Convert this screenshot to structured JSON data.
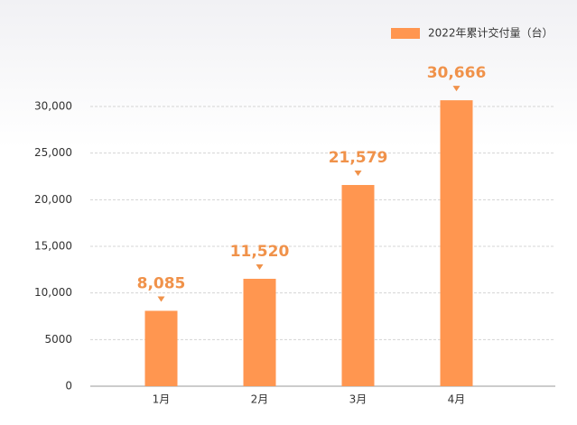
{
  "chart_data": {
    "type": "bar",
    "categories": [
      "1月",
      "2月",
      "3月",
      "4月"
    ],
    "series": [
      {
        "name": "2022年累计交付量（台）",
        "color": "#ff9650",
        "values": [
          8085,
          11520,
          21579,
          30666
        ],
        "value_labels": [
          "8,085",
          "11,520",
          "21,579",
          "30,666"
        ]
      }
    ],
    "ylim": [
      0,
      30000
    ],
    "yticks": [
      0,
      5000,
      {
        "value": 10000,
        "label": "10,000"
      },
      {
        "value": 15000,
        "label": "15,000"
      },
      {
        "value": 20000,
        "label": "20,000"
      },
      {
        "value": 25000,
        "label": "25,000"
      },
      {
        "value": 30000,
        "label": "30,000"
      }
    ],
    "grid": true,
    "legend": "top-right"
  }
}
